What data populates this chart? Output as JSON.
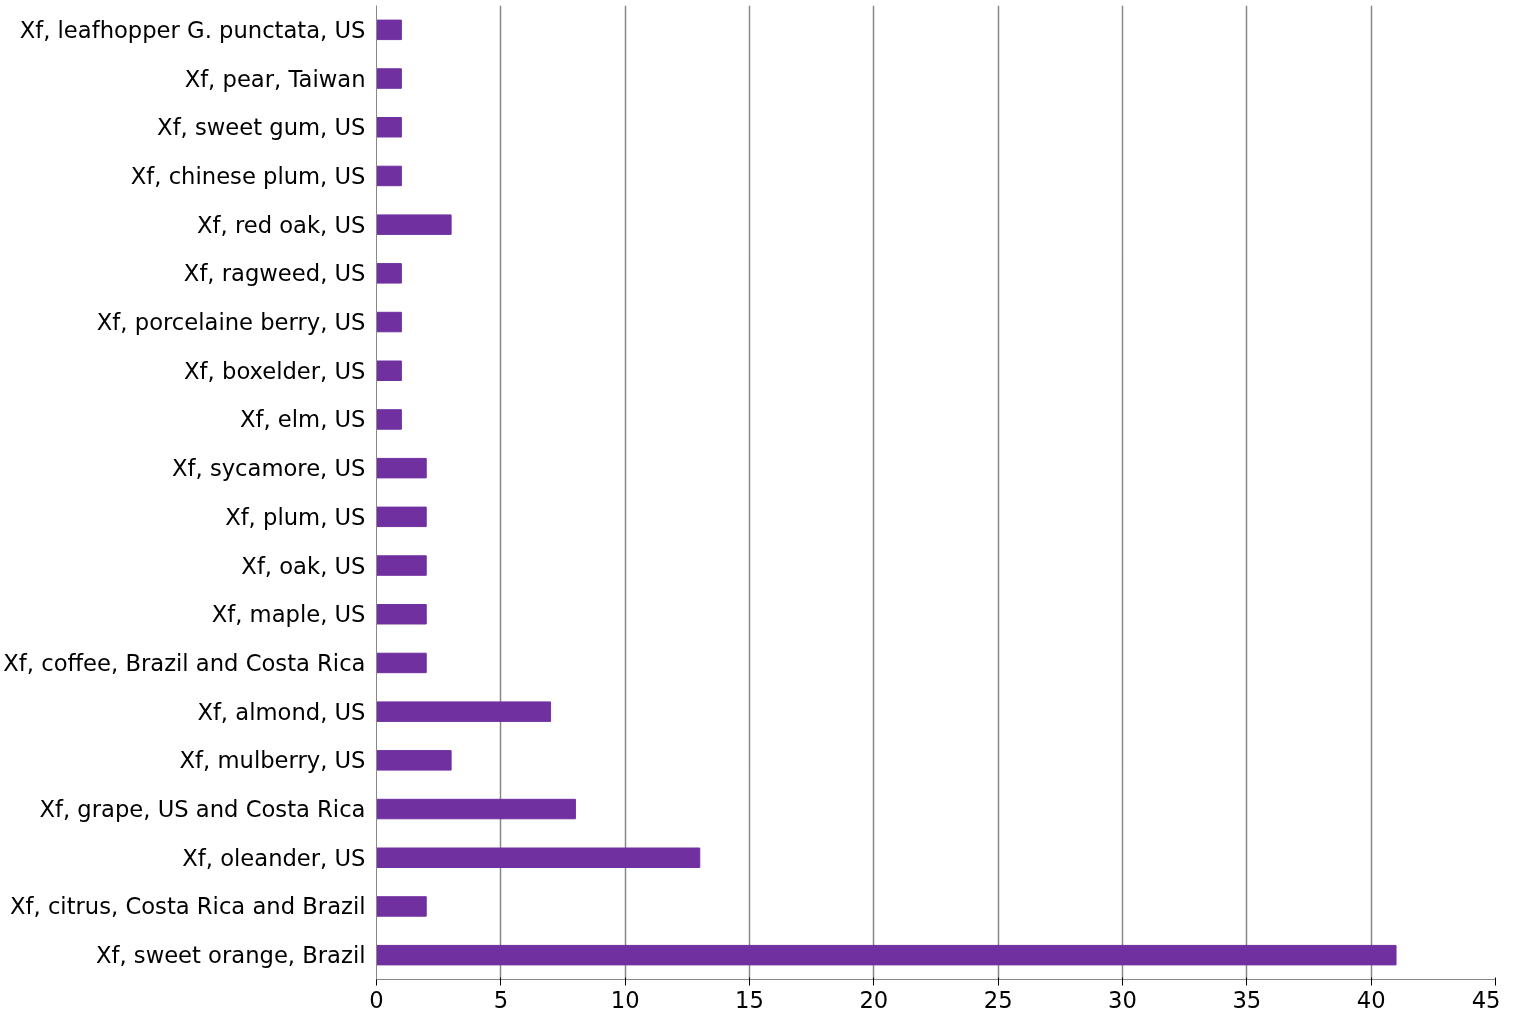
{
  "chart_data": {
    "type": "bar",
    "orientation": "horizontal",
    "categories": [
      "Xf, leafhopper G. punctata, US",
      "Xf, pear, Taiwan",
      "Xf, sweet gum, US",
      "Xf, chinese plum, US",
      "Xf, red oak, US",
      "Xf, ragweed, US",
      "Xf, porcelaine berry, US",
      "Xf, boxelder, US",
      "Xf, elm, US",
      "Xf, sycamore, US",
      "Xf, plum, US",
      "Xf, oak, US",
      "Xf, maple, US",
      "Xf, coffee, Brazil and Costa Rica",
      "Xf, almond, US",
      "Xf, mulberry, US",
      "Xf, grape, US and Costa Rica",
      "Xf, oleander, US",
      "Xf, citrus, Costa Rica and Brazil",
      "Xf, sweet orange, Brazil"
    ],
    "values": [
      1,
      1,
      1,
      1,
      3,
      1,
      1,
      1,
      1,
      2,
      2,
      2,
      2,
      2,
      7,
      3,
      8,
      13,
      2,
      41
    ],
    "color": "#7030a0",
    "xlim": [
      0,
      45
    ],
    "xticks": [
      0,
      5,
      10,
      15,
      20,
      25,
      30,
      35,
      40,
      45
    ],
    "grid": "x"
  }
}
